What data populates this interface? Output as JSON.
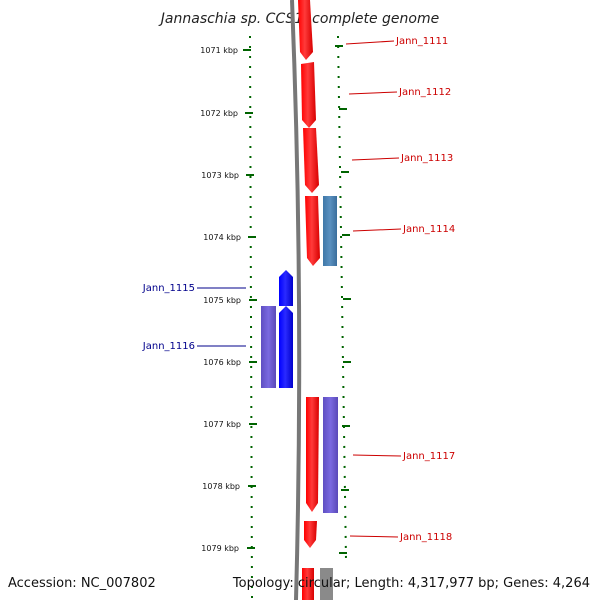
{
  "title": "Jannaschia sp. CCS1, complete genome",
  "footer": {
    "accession": "Accession: NC_007802",
    "summary": "Topology: circular; Length: 4,317,977 bp; Genes: 4,264"
  },
  "colors": {
    "forward_gene": "#ff0000",
    "reverse_gene": "#0000ff",
    "forward_other": "#4682b4",
    "reverse_other": "#6a5acd",
    "backbone": "#777777",
    "ticks": "#006400",
    "forward_label": "#cc0000",
    "reverse_label": "#00008b"
  },
  "scale_labels": [
    "1071 kbp",
    "1072 kbp",
    "1073 kbp",
    "1074 kbp",
    "1075 kbp",
    "1076 kbp",
    "1077 kbp",
    "1078 kbp",
    "1079 kbp"
  ],
  "forward_genes": [
    {
      "label": "Jann_1111"
    },
    {
      "label": "Jann_1112"
    },
    {
      "label": "Jann_1113"
    },
    {
      "label": "Jann_1114"
    },
    {
      "label": "Jann_1117"
    },
    {
      "label": "Jann_1118"
    }
  ],
  "reverse_genes": [
    {
      "label": "Jann_1115"
    },
    {
      "label": "Jann_1116"
    }
  ]
}
